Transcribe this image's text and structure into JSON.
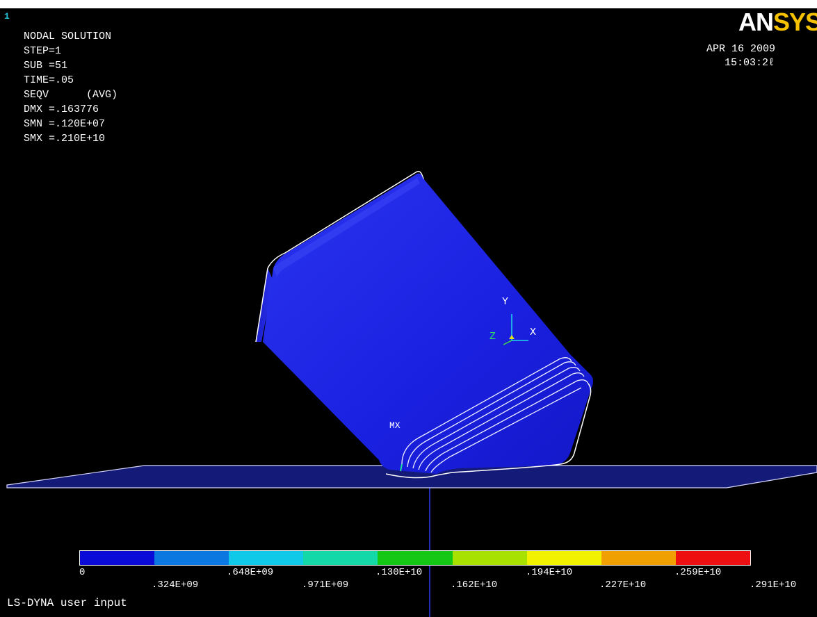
{
  "window_number": "1",
  "solution_info": {
    "title": "NODAL SOLUTION",
    "lines": [
      "STEP=1",
      "SUB =51",
      "TIME=.05",
      "SEQV      (AVG)",
      "DMX =.163776",
      "SMN =.120E+07",
      "SMX =.210E+10"
    ]
  },
  "logo": {
    "part1": "AN",
    "part2": "SYS"
  },
  "date": "APR 16 2009",
  "time": "15:03:2ℓ",
  "triad": {
    "y": "Y",
    "z": "Z",
    "x": "X"
  },
  "max_marker": "MX",
  "legend": {
    "colors": [
      "#0b0bd8",
      "#0a78e0",
      "#10c8e8",
      "#14d8a8",
      "#16c816",
      "#a8e000",
      "#f2f200",
      "#f0a000",
      "#ee1010"
    ],
    "labels_top": [
      "0",
      ".648E+09",
      ".130E+10",
      ".194E+10",
      ".259E+10"
    ],
    "labels_bottom": [
      ".324E+09",
      ".971E+09",
      ".162E+10",
      ".227E+10",
      ".291E+10"
    ]
  },
  "footer": "LS-DYNA user input",
  "colors": {
    "background": "#000000",
    "model": "#1c22e6",
    "accent_logo": "#f4c000"
  }
}
